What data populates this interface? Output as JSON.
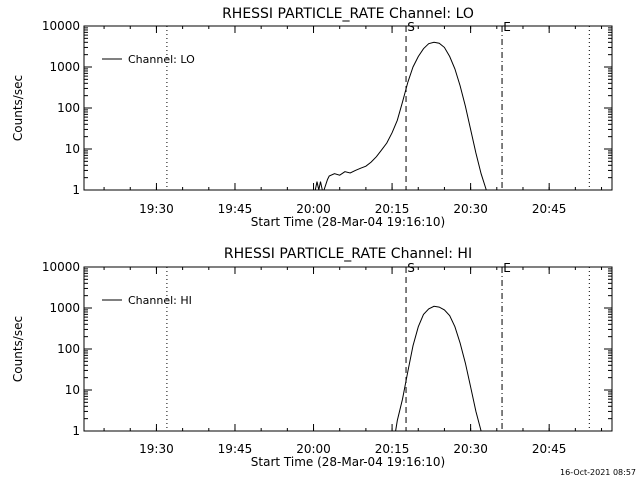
{
  "footer_timestamp": "16-Oct-2021 08:57",
  "colors": {
    "background": "#ffffff",
    "ink": "#000000"
  },
  "chart_data": [
    {
      "type": "line",
      "title": "RHESSI PARTICLE_RATE Channel: LO",
      "xlabel": "Start Time (28-Mar-04 19:16:10)",
      "ylabel": "Counts/sec",
      "yscale": "log",
      "ylim": [
        1,
        10000
      ],
      "xlim": [
        "19:16:10",
        "20:57:00"
      ],
      "x_ticks": [
        "19:30",
        "19:45",
        "20:00",
        "20:15",
        "20:30",
        "20:45"
      ],
      "y_ticks": [
        "1",
        "10",
        "100",
        "1000",
        "10000"
      ],
      "grid": false,
      "legend_position": "top-left",
      "series": [
        {
          "name": "Channel: LO",
          "x": [
            "20:00:20",
            "20:00:40",
            "20:01:00",
            "20:01:20",
            "20:01:40",
            "20:02:00",
            "20:02:40",
            "20:03:00",
            "20:04:00",
            "20:05:00",
            "20:06:00",
            "20:07:00",
            "20:08:00",
            "20:09:00",
            "20:10:00",
            "20:11:00",
            "20:12:00",
            "20:13:00",
            "20:14:00",
            "20:15:00",
            "20:16:00",
            "20:17:00",
            "20:18:00",
            "20:19:00",
            "20:20:00",
            "20:21:00",
            "20:22:00",
            "20:23:00",
            "20:24:00",
            "20:25:00",
            "20:26:00",
            "20:27:00",
            "20:28:00",
            "20:29:00",
            "20:30:00",
            "20:31:00",
            "20:32:00",
            "20:33:00"
          ],
          "values": [
            1.0,
            1.6,
            1.0,
            1.6,
            1.0,
            1.0,
            1.8,
            2.2,
            2.5,
            2.3,
            2.8,
            2.6,
            3.0,
            3.4,
            3.8,
            4.8,
            6.5,
            9.5,
            14,
            25,
            50,
            140,
            420,
            1000,
            1800,
            2800,
            3700,
            4000,
            3800,
            3000,
            1800,
            900,
            350,
            110,
            30,
            8,
            2.5,
            1.0
          ]
        }
      ],
      "markers": [
        {
          "label": "S",
          "time": "20:17:40",
          "style": "dashed"
        },
        {
          "label": "E",
          "time": "20:36:00",
          "style": "dash-dot"
        },
        {
          "label": "",
          "time": "19:32:00",
          "style": "dotted"
        },
        {
          "label": "",
          "time": "20:52:40",
          "style": "dotted"
        }
      ]
    },
    {
      "type": "line",
      "title": "RHESSI PARTICLE_RATE Channel: HI",
      "xlabel": "Start Time (28-Mar-04 19:16:10)",
      "ylabel": "Counts/sec",
      "yscale": "log",
      "ylim": [
        1,
        10000
      ],
      "xlim": [
        "19:16:10",
        "20:57:00"
      ],
      "x_ticks": [
        "19:30",
        "19:45",
        "20:00",
        "20:15",
        "20:30",
        "20:45"
      ],
      "y_ticks": [
        "1",
        "10",
        "100",
        "1000",
        "10000"
      ],
      "grid": false,
      "legend_position": "top-left",
      "series": [
        {
          "name": "Channel: HI",
          "x": [
            "20:15:40",
            "20:16:00",
            "20:17:00",
            "20:18:00",
            "20:19:00",
            "20:20:00",
            "20:21:00",
            "20:22:00",
            "20:23:00",
            "20:24:00",
            "20:25:00",
            "20:26:00",
            "20:27:00",
            "20:28:00",
            "20:29:00",
            "20:30:00",
            "20:31:00",
            "20:32:00"
          ],
          "values": [
            1.0,
            1.8,
            6,
            28,
            120,
            350,
            700,
            950,
            1100,
            1050,
            900,
            650,
            350,
            140,
            45,
            12,
            3,
            1.0
          ]
        }
      ],
      "markers": [
        {
          "label": "S",
          "time": "20:17:40",
          "style": "dashed"
        },
        {
          "label": "E",
          "time": "20:36:00",
          "style": "dash-dot"
        },
        {
          "label": "",
          "time": "19:32:00",
          "style": "dotted"
        },
        {
          "label": "",
          "time": "20:52:40",
          "style": "dotted"
        }
      ]
    }
  ]
}
